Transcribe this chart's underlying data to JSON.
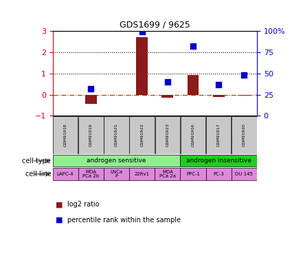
{
  "title": "GDS1699 / 9625",
  "samples": [
    "GSM91918",
    "GSM91919",
    "GSM91921",
    "GSM91922",
    "GSM91923",
    "GSM91916",
    "GSM91917",
    "GSM91920"
  ],
  "log2_ratio": [
    0.0,
    -0.45,
    0.0,
    2.72,
    -0.15,
    0.92,
    -0.12,
    -0.04
  ],
  "percentile_pct": [
    null,
    32,
    null,
    99,
    40,
    82,
    37,
    48
  ],
  "bar_color": "#8B1A1A",
  "dot_color": "#0000CC",
  "ylim_left": [
    -1,
    3
  ],
  "ylim_right": [
    0,
    100
  ],
  "yticks_left": [
    -1,
    0,
    1,
    2,
    3
  ],
  "yticks_right": [
    0,
    25,
    50,
    75,
    100
  ],
  "cell_type_groups": [
    {
      "label": "androgen sensitive",
      "start": 0,
      "end": 5,
      "color": "#90EE90"
    },
    {
      "label": "androgen insensitive",
      "start": 5,
      "end": 8,
      "color": "#22CC22"
    }
  ],
  "cell_lines": [
    {
      "label": "LAPC-4",
      "start": 0,
      "end": 1
    },
    {
      "label": "MDA\nPCa 2b",
      "start": 1,
      "end": 2
    },
    {
      "label": "LNCa\nP",
      "start": 2,
      "end": 3
    },
    {
      "label": "22Rv1",
      "start": 3,
      "end": 4
    },
    {
      "label": "MDA\nPCa 2a",
      "start": 4,
      "end": 5
    },
    {
      "label": "PPC-1",
      "start": 5,
      "end": 6
    },
    {
      "label": "PC-3",
      "start": 6,
      "end": 7
    },
    {
      "label": "DU 145",
      "start": 7,
      "end": 8
    }
  ],
  "cell_line_color": "#DD88DD",
  "sample_box_color": "#C8C8C8",
  "legend_labels": [
    "log2 ratio",
    "percentile rank within the sample"
  ],
  "legend_colors": [
    "#8B1A1A",
    "#0000CC"
  ],
  "left_axis_color": "#CC0000",
  "right_axis_color": "#0000CC",
  "bar_width": 0.45,
  "dot_size": 30
}
